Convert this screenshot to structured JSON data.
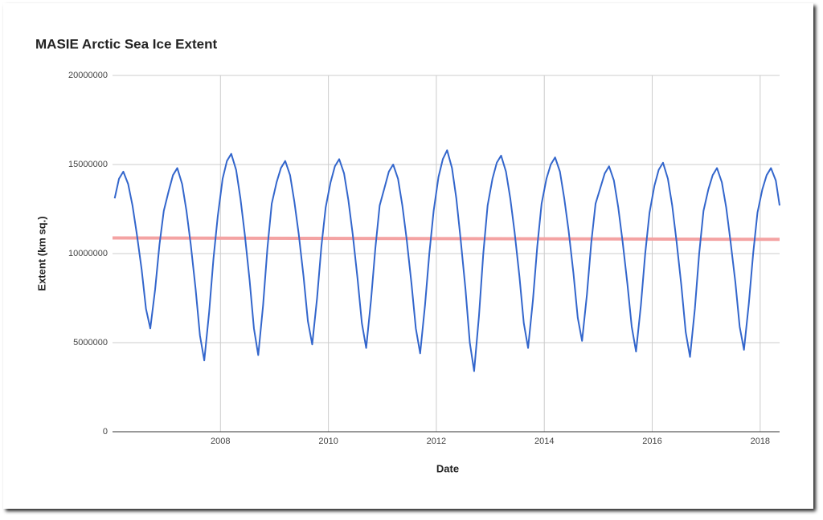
{
  "chart_data": {
    "type": "line",
    "title": "MASIE Arctic Sea Ice Extent",
    "x_label": "Date",
    "y_label": "Extent (km sq.)",
    "xlim": [
      2006,
      2018.36
    ],
    "ylim": [
      0,
      20000000
    ],
    "xticks": [
      2008,
      2010,
      2012,
      2014,
      2016,
      2018
    ],
    "yticks": [
      0,
      5000000,
      10000000,
      15000000,
      20000000
    ],
    "grid": true,
    "series": [
      {
        "color": "#3366cc",
        "width": 2,
        "x": [
          2006.04,
          2006.12,
          2006.2,
          2006.29,
          2006.37,
          2006.45,
          2006.54,
          2006.62,
          2006.7,
          2006.79,
          2006.87,
          2006.95,
          2007.04,
          2007.12,
          2007.2,
          2007.29,
          2007.37,
          2007.45,
          2007.54,
          2007.62,
          2007.7,
          2007.79,
          2007.87,
          2007.95,
          2008.04,
          2008.12,
          2008.2,
          2008.29,
          2008.37,
          2008.45,
          2008.54,
          2008.62,
          2008.7,
          2008.79,
          2008.87,
          2008.95,
          2009.04,
          2009.12,
          2009.2,
          2009.29,
          2009.37,
          2009.45,
          2009.54,
          2009.62,
          2009.7,
          2009.79,
          2009.87,
          2009.95,
          2010.04,
          2010.12,
          2010.2,
          2010.29,
          2010.37,
          2010.45,
          2010.54,
          2010.62,
          2010.7,
          2010.79,
          2010.87,
          2010.95,
          2011.04,
          2011.12,
          2011.2,
          2011.29,
          2011.37,
          2011.45,
          2011.54,
          2011.62,
          2011.7,
          2011.79,
          2011.87,
          2011.95,
          2012.04,
          2012.12,
          2012.2,
          2012.29,
          2012.37,
          2012.45,
          2012.54,
          2012.62,
          2012.7,
          2012.79,
          2012.87,
          2012.95,
          2013.04,
          2013.12,
          2013.2,
          2013.29,
          2013.37,
          2013.45,
          2013.54,
          2013.62,
          2013.7,
          2013.79,
          2013.87,
          2013.95,
          2014.04,
          2014.12,
          2014.2,
          2014.29,
          2014.37,
          2014.45,
          2014.54,
          2014.62,
          2014.7,
          2014.79,
          2014.87,
          2014.95,
          2015.04,
          2015.12,
          2015.2,
          2015.29,
          2015.37,
          2015.45,
          2015.54,
          2015.62,
          2015.7,
          2015.79,
          2015.87,
          2015.95,
          2016.04,
          2016.12,
          2016.2,
          2016.29,
          2016.37,
          2016.45,
          2016.54,
          2016.62,
          2016.7,
          2016.79,
          2016.87,
          2016.95,
          2017.04,
          2017.12,
          2017.2,
          2017.29,
          2017.37,
          2017.45,
          2017.54,
          2017.62,
          2017.7,
          2017.79,
          2017.87,
          2017.95,
          2018.04,
          2018.12,
          2018.2,
          2018.29,
          2018.36
        ],
        "values": [
          13100000,
          14200000,
          14600000,
          13900000,
          12700000,
          11100000,
          9100000,
          6900000,
          5800000,
          8000000,
          10500000,
          12400000,
          13500000,
          14400000,
          14800000,
          13900000,
          12400000,
          10500000,
          8000000,
          5400000,
          4000000,
          6700000,
          9700000,
          12100000,
          14200000,
          15200000,
          15600000,
          14700000,
          13100000,
          11100000,
          8500000,
          5800000,
          4300000,
          7100000,
          10300000,
          12800000,
          14000000,
          14800000,
          15200000,
          14400000,
          12900000,
          11100000,
          8700000,
          6200000,
          4900000,
          7500000,
          10400000,
          12600000,
          14000000,
          14900000,
          15300000,
          14500000,
          13000000,
          11100000,
          8600000,
          6100000,
          4700000,
          7400000,
          10300000,
          12700000,
          13700000,
          14600000,
          15000000,
          14200000,
          12700000,
          10800000,
          8300000,
          5800000,
          4400000,
          7100000,
          10000000,
          12400000,
          14300000,
          15300000,
          15800000,
          14800000,
          13100000,
          10800000,
          8000000,
          5000000,
          3400000,
          6500000,
          10000000,
          12700000,
          14200000,
          15100000,
          15500000,
          14600000,
          13100000,
          11200000,
          8700000,
          6100000,
          4700000,
          7400000,
          10400000,
          12800000,
          14200000,
          15000000,
          15400000,
          14600000,
          13100000,
          11300000,
          8900000,
          6400000,
          5100000,
          7700000,
          10600000,
          12800000,
          13700000,
          14500000,
          14900000,
          14100000,
          12600000,
          10700000,
          8300000,
          5900000,
          4500000,
          7100000,
          10000000,
          12300000,
          13800000,
          14700000,
          15100000,
          14200000,
          12700000,
          10700000,
          8200000,
          5600000,
          4200000,
          6900000,
          10000000,
          12400000,
          13600000,
          14400000,
          14800000,
          14000000,
          12600000,
          10700000,
          8400000,
          5900000,
          4600000,
          7200000,
          10000000,
          12300000,
          13600000,
          14400000,
          14800000,
          14100000,
          12700000
        ]
      },
      {
        "color": "#f4a3a3",
        "width": 4,
        "x": [
          2006,
          2018.36
        ],
        "values": [
          10880000,
          10800000
        ]
      }
    ]
  }
}
